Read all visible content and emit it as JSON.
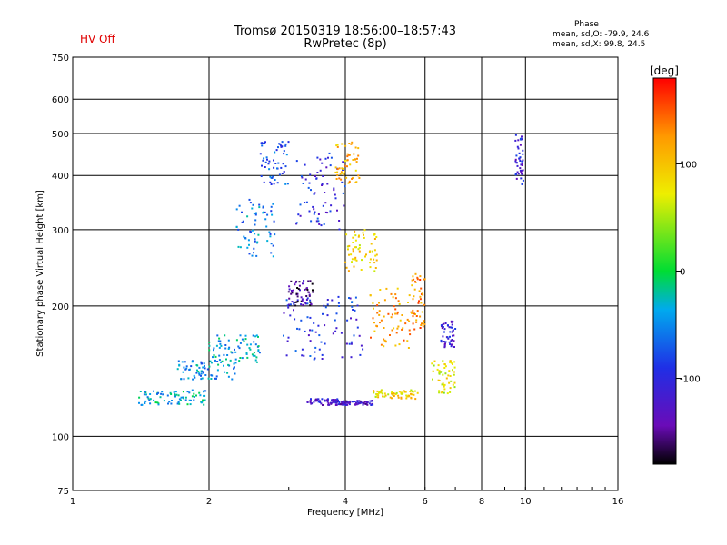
{
  "header": {
    "title": "Tromsø 20150319 18:56:00–18:57:43",
    "subtitle": "RwPretec (8p)",
    "hv_status": "HV Off",
    "hv_color": "#e00000",
    "phase_title": "Phase",
    "phase_o": "mean, sd,O: -79.9, 24.6",
    "phase_x": "mean, sd,X:  99.8, 24.5"
  },
  "colorbar": {
    "unit": "[deg]",
    "ticks": [
      "100",
      "0",
      "-100"
    ],
    "tick_values": [
      100,
      0,
      -100
    ],
    "range": [
      -180,
      180
    ]
  },
  "chart_data": {
    "type": "scatter",
    "xlabel": "Frequency [MHz]",
    "ylabel": "Stationary phase Virtual Height [km]",
    "x_scale": "log",
    "y_scale": "log",
    "xlim": [
      1,
      16
    ],
    "ylim": [
      75,
      750
    ],
    "x_ticks": [
      1,
      2,
      4,
      6,
      8,
      10,
      16
    ],
    "x_tick_labels": [
      "1",
      "2",
      "4",
      "6",
      "8",
      "10",
      "16"
    ],
    "y_ticks": [
      75,
      100,
      200,
      300,
      400,
      500,
      600,
      750
    ],
    "y_tick_labels": [
      "75",
      "100",
      "200",
      "300",
      "400",
      "500",
      "600",
      "750"
    ],
    "grid": true,
    "color_by": "phase [deg]",
    "colormap": [
      "#000000",
      "#6a0bb8",
      "#1f2fe6",
      "#00aaee",
      "#00dd33",
      "#eeee00",
      "#ff9900",
      "#ff0000"
    ],
    "traces": [
      {
        "x_range": [
          1.4,
          2.0
        ],
        "y_range": [
          118,
          128
        ],
        "phase": -35
      },
      {
        "x_range": [
          1.7,
          2.3
        ],
        "y_range": [
          135,
          150
        ],
        "phase": -45
      },
      {
        "x_range": [
          2.0,
          2.6
        ],
        "y_range": [
          148,
          172
        ],
        "phase": -40
      },
      {
        "x_range": [
          2.3,
          2.8
        ],
        "y_range": [
          260,
          360
        ],
        "phase": -55
      },
      {
        "x_range": [
          2.6,
          3.0
        ],
        "y_range": [
          380,
          480
        ],
        "phase": -80
      },
      {
        "x_range": [
          2.9,
          4.4
        ],
        "y_range": [
          150,
          210
        ],
        "phase": -95
      },
      {
        "x_range": [
          3.0,
          3.4
        ],
        "y_range": [
          200,
          230
        ],
        "phase": -150
      },
      {
        "x_range": [
          3.1,
          4.0
        ],
        "y_range": [
          300,
          450
        ],
        "phase": -100
      },
      {
        "x_range": [
          3.3,
          4.0
        ],
        "y_range": [
          118,
          122
        ],
        "phase": -120
      },
      {
        "x_range": [
          3.8,
          4.6
        ],
        "y_range": [
          118,
          121
        ],
        "phase": -125
      },
      {
        "x_range": [
          3.8,
          4.3
        ],
        "y_range": [
          380,
          480
        ],
        "phase": 110
      },
      {
        "x_range": [
          4.0,
          4.7
        ],
        "y_range": [
          240,
          300
        ],
        "phase": 90
      },
      {
        "x_range": [
          4.5,
          5.6
        ],
        "y_range": [
          160,
          220
        ],
        "phase": 120
      },
      {
        "x_range": [
          4.6,
          5.8
        ],
        "y_range": [
          122,
          128
        ],
        "phase": 85
      },
      {
        "x_range": [
          5.6,
          6.0
        ],
        "y_range": [
          175,
          240
        ],
        "phase": 130
      },
      {
        "x_range": [
          6.2,
          7.0
        ],
        "y_range": [
          125,
          150
        ],
        "phase": 70
      },
      {
        "x_range": [
          6.5,
          7.0
        ],
        "y_range": [
          160,
          185
        ],
        "phase": -115
      },
      {
        "x_range": [
          9.5,
          9.9
        ],
        "y_range": [
          380,
          500
        ],
        "phase": -110
      }
    ]
  }
}
